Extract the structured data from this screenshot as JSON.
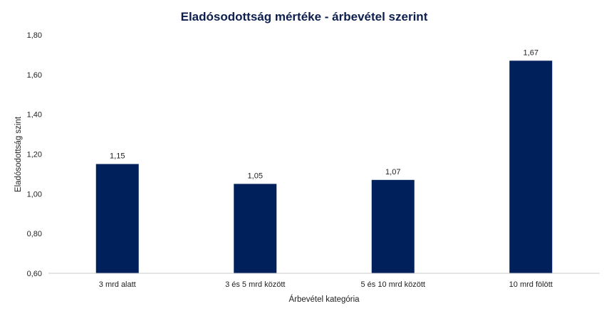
{
  "chart_data": {
    "type": "bar",
    "title": "Eladósodottság mértéke - árbevétel szerint",
    "xlabel": "Árbevétel  kategória",
    "ylabel": "Eladósodottság szint",
    "categories": [
      "3 mrd alatt",
      "3 és 5 mrd között",
      "5 és 10 mrd között",
      "10 mrd fölött"
    ],
    "values": [
      1.15,
      1.05,
      1.07,
      1.67
    ],
    "value_labels": [
      "1,15",
      "1,05",
      "1,07",
      "1,67"
    ],
    "ylim": [
      0.6,
      1.8
    ],
    "yticks": [
      0.6,
      0.8,
      1.0,
      1.2,
      1.4,
      1.6,
      1.8
    ],
    "ytick_labels": [
      "0,60",
      "0,80",
      "1,00",
      "1,20",
      "1,40",
      "1,60",
      "1,80"
    ],
    "grid": false,
    "legend": "none",
    "bar_color": "#00205b"
  }
}
